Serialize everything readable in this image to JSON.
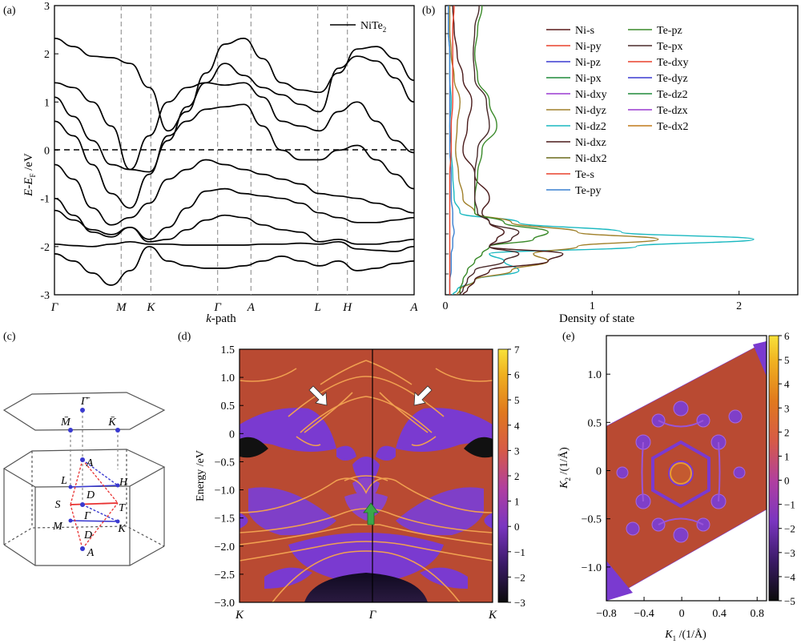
{
  "panels": {
    "a": {
      "tag": "(a)",
      "material": "NiTe",
      "material_sub": "2",
      "ylabel_main": "E-E",
      "ylabel_sub": "F",
      "ylabel_unit": " /eV",
      "xlabel_k": "k",
      "xlabel_rest": "-path"
    },
    "b": {
      "tag": "(b)",
      "xlabel": "Density of state"
    },
    "c": {
      "tag": "(c)"
    },
    "d": {
      "tag": "(d)",
      "ylabel": "Energy /eV"
    },
    "e": {
      "tag": "(e)"
    }
  },
  "chart_data": [
    {
      "panel": "a",
      "type": "line",
      "legend": [
        "NiTe2"
      ],
      "xlabel": "k-path",
      "ylabel": "E-E_F /eV",
      "ylim": [
        -3,
        3
      ],
      "yticks": [
        -3,
        -2,
        -1,
        0,
        1,
        2,
        3
      ],
      "xticks": [
        {
          "label": "Γ",
          "pos": 0
        },
        {
          "label": "M",
          "pos": 1.8
        },
        {
          "label": "K",
          "pos": 2.6
        },
        {
          "label": "Γ",
          "pos": 4.4
        },
        {
          "label": "A",
          "pos": 5.3
        },
        {
          "label": "L",
          "pos": 7.1
        },
        {
          "label": "H",
          "pos": 7.9
        },
        {
          "label": "A",
          "pos": 9.7
        }
      ],
      "fermi_level": 0,
      "bands": [
        [
          2.32,
          2.15,
          1.95,
          1.92,
          1.8,
          1.3,
          0.4,
          0.8,
          1.6,
          2.2,
          2.32,
          1.9,
          1.4,
          1.25,
          1.2,
          1.6,
          2.1,
          2.15,
          1.9,
          1.45
        ],
        [
          1.4,
          1.3,
          1.0,
          0.5,
          -0.4,
          -0.45,
          0.2,
          0.9,
          1.4,
          1.8,
          1.55,
          1.3,
          1.15,
          0.95,
          0.8,
          1.7,
          1.95,
          1.85,
          1.5,
          1.0
        ],
        [
          1.1,
          0.7,
          0.2,
          -0.3,
          -0.4,
          0.3,
          1.0,
          1.3,
          1.4,
          1.35,
          1.4,
          1.1,
          0.6,
          0.5,
          0.4,
          0.8,
          1.0,
          0.6,
          0.2,
          -0.05
        ],
        [
          0.6,
          0.3,
          -0.3,
          -0.9,
          -1.2,
          -0.5,
          0.3,
          0.6,
          0.85,
          0.9,
          0.95,
          0.5,
          0.0,
          -0.2,
          -0.2,
          0.0,
          0.1,
          -0.2,
          -0.5,
          -0.8
        ],
        [
          -0.3,
          -0.6,
          -1.2,
          -1.55,
          -1.4,
          -1.1,
          -0.6,
          -0.4,
          -0.2,
          -0.3,
          -0.4,
          -0.5,
          -0.6,
          -0.7,
          -0.9,
          -0.95,
          -1.0,
          -1.1,
          -1.2,
          -1.3
        ],
        [
          -1.0,
          -1.35,
          -1.7,
          -1.8,
          -1.6,
          -1.85,
          -1.6,
          -1.2,
          -0.85,
          -0.8,
          -0.9,
          -0.95,
          -1.0,
          -1.1,
          -1.3,
          -1.4,
          -1.5,
          -1.5,
          -1.45,
          -1.4
        ],
        [
          -1.25,
          -1.45,
          -1.65,
          -1.75,
          -1.6,
          -1.9,
          -1.85,
          -1.65,
          -1.45,
          -1.35,
          -1.4,
          -1.55,
          -1.65,
          -1.7,
          -1.9,
          -1.85,
          -1.95,
          -1.95,
          -1.9,
          -1.85
        ],
        [
          -1.95,
          -1.98,
          -2.0,
          -1.95,
          -1.9,
          -1.95,
          -1.95,
          -1.97,
          -1.97,
          -1.97,
          -1.97,
          -1.95,
          -1.95,
          -1.93,
          -1.95,
          -1.9,
          -2.05,
          -2.08,
          -2.1,
          -2.0
        ],
        [
          -2.15,
          -2.3,
          -2.55,
          -2.8,
          -2.5,
          -2.0,
          -2.3,
          -2.4,
          -2.45,
          -2.45,
          -2.4,
          -2.3,
          -2.2,
          -2.3,
          -2.4,
          -2.3,
          -2.5,
          -2.45,
          -2.35,
          -2.3
        ]
      ]
    },
    {
      "panel": "b",
      "type": "line",
      "xlabel": "Density of state",
      "xlim": [
        0,
        2.4
      ],
      "xticks": [
        0,
        1,
        2
      ],
      "ylim": [
        -3,
        3
      ],
      "legend_col1": [
        "Ni-s",
        "Ni-py",
        "Ni-pz",
        "Ni-px",
        "Ni-dxy",
        "Ni-dyz",
        "Ni-dz2",
        "Ni-dxz",
        "Ni-dx2",
        "Te-s",
        "Te-py"
      ],
      "legend_col2": [
        "Te-pz",
        "Te-px",
        "Te-dxy",
        "Te-dyz",
        "Te-dz2",
        "Te-dzx",
        "Te-dx2"
      ],
      "legend_colors_col1": [
        "#5a1a1a",
        "#e8412c",
        "#3a3ad0",
        "#1f8a3a",
        "#9a3ad0",
        "#a0802a",
        "#1ab8c0",
        "#4a1a1a",
        "#6a6a1a",
        "#e8412c",
        "#3a80d0"
      ],
      "legend_colors_col2": [
        "#3a8a2a",
        "#4a2a2a",
        "#e8412c",
        "#3a3ad0",
        "#1f8a3a",
        "#9a3ad0",
        "#c07a1a"
      ],
      "y": [
        3.0,
        2.5,
        2.0,
        1.5,
        1.0,
        0.5,
        0.0,
        -0.5,
        -1.0,
        -1.3,
        -1.5,
        -1.7,
        -1.85,
        -2.0,
        -2.15,
        -2.3,
        -2.5,
        -2.7,
        -2.9,
        -3.0
      ],
      "series": [
        {
          "name": "Ni-dz2",
          "color": "#1ab8c0",
          "values": [
            0.02,
            0.02,
            0.03,
            0.03,
            0.04,
            0.03,
            0.04,
            0.05,
            0.06,
            0.1,
            0.5,
            1.2,
            2.1,
            1.3,
            0.3,
            0.4,
            0.5,
            0.2,
            0.08,
            0.05
          ]
        },
        {
          "name": "Ni-dyz",
          "color": "#a0802a",
          "values": [
            0.03,
            0.03,
            0.04,
            0.06,
            0.1,
            0.08,
            0.07,
            0.09,
            0.12,
            0.2,
            0.45,
            0.9,
            1.45,
            0.9,
            0.6,
            0.7,
            0.45,
            0.2,
            0.1,
            0.08
          ]
        },
        {
          "name": "Ni-dxz",
          "color": "#4a1a1a",
          "values": [
            0.05,
            0.06,
            0.08,
            0.12,
            0.18,
            0.15,
            0.12,
            0.2,
            0.3,
            0.25,
            0.3,
            0.4,
            0.35,
            0.3,
            0.8,
            0.7,
            0.3,
            0.2,
            0.15,
            0.12
          ]
        },
        {
          "name": "Te-pz",
          "color": "#3a8a2a",
          "values": [
            0.25,
            0.22,
            0.2,
            0.22,
            0.3,
            0.35,
            0.25,
            0.22,
            0.2,
            0.2,
            0.4,
            0.7,
            0.6,
            0.3,
            0.25,
            0.2,
            0.15,
            0.12,
            0.1,
            0.1
          ]
        },
        {
          "name": "Te-px",
          "color": "#4a2a2a",
          "values": [
            0.23,
            0.2,
            0.19,
            0.2,
            0.28,
            0.3,
            0.22,
            0.2,
            0.2,
            0.22,
            0.3,
            0.5,
            0.45,
            0.3,
            0.5,
            0.4,
            0.2,
            0.15,
            0.12,
            0.1
          ]
        },
        {
          "name": "Te-py",
          "color": "#3a80d0",
          "values": [
            0.02,
            0.02,
            0.03,
            0.03,
            0.03,
            0.03,
            0.03,
            0.04,
            0.04,
            0.05,
            0.05,
            0.06,
            0.05,
            0.05,
            0.04,
            0.04,
            0.04,
            0.03,
            0.03,
            0.03
          ]
        },
        {
          "name": "Ni-py",
          "color": "#e8412c",
          "values": [
            0.06,
            0.05,
            0.05,
            0.05,
            0.05,
            0.04,
            0.04,
            0.03,
            0.03,
            0.03,
            0.03,
            0.03,
            0.03,
            0.03,
            0.03,
            0.03,
            0.03,
            0.03,
            0.03,
            0.03
          ]
        }
      ]
    },
    {
      "panel": "d",
      "type": "heatmap",
      "ylabel": "Energy /eV",
      "ylim": [
        -3.0,
        1.5
      ],
      "yticks": [
        1.5,
        1.0,
        0.5,
        0,
        -0.5,
        -1.0,
        -1.5,
        -2.0,
        -2.5,
        -3.0
      ],
      "xticks": [
        "K",
        "Γ",
        "K"
      ],
      "colorbar": {
        "min": -3,
        "max": 7,
        "ticks": [
          7,
          6,
          5,
          4,
          3,
          2,
          1,
          0,
          -1,
          -2,
          -3
        ]
      }
    },
    {
      "panel": "e",
      "type": "heatmap",
      "xlabel": "K1 /(1/Å)",
      "ylabel": "K2 /(1/Å)",
      "xlim": [
        -0.8,
        0.9
      ],
      "ylim": [
        -1.35,
        1.4
      ],
      "xticks": [
        -0.8,
        -0.4,
        0,
        0.4,
        0.8
      ],
      "yticks": [
        1.0,
        0.5,
        0,
        -0.5,
        -1.0
      ],
      "colorbar": {
        "min": -5,
        "max": 6,
        "ticks": [
          6,
          5,
          4,
          3,
          2,
          1,
          0,
          -1,
          -2,
          -3,
          -4,
          -5
        ]
      }
    }
  ],
  "diagram_c": {
    "surface_labels": [
      "M̄",
      "Γ̄",
      "K̄"
    ],
    "bulk_labels": [
      "A",
      "L",
      "H",
      "D",
      "S",
      "Γ",
      "T",
      "M",
      "D",
      "K",
      "A"
    ]
  },
  "axis_labels_extra": {
    "a_xtick_labels": [
      "Γ",
      "M",
      "K",
      "Γ",
      "A",
      "L",
      "H",
      "A"
    ],
    "e_xlabel_main": "K",
    "e_xlabel_sub": "1",
    "e_xlabel_unit": " /(1/Å)",
    "e_ylabel_main": "K",
    "e_ylabel_sub": "2",
    "e_ylabel_unit": " /(1/Å)"
  }
}
